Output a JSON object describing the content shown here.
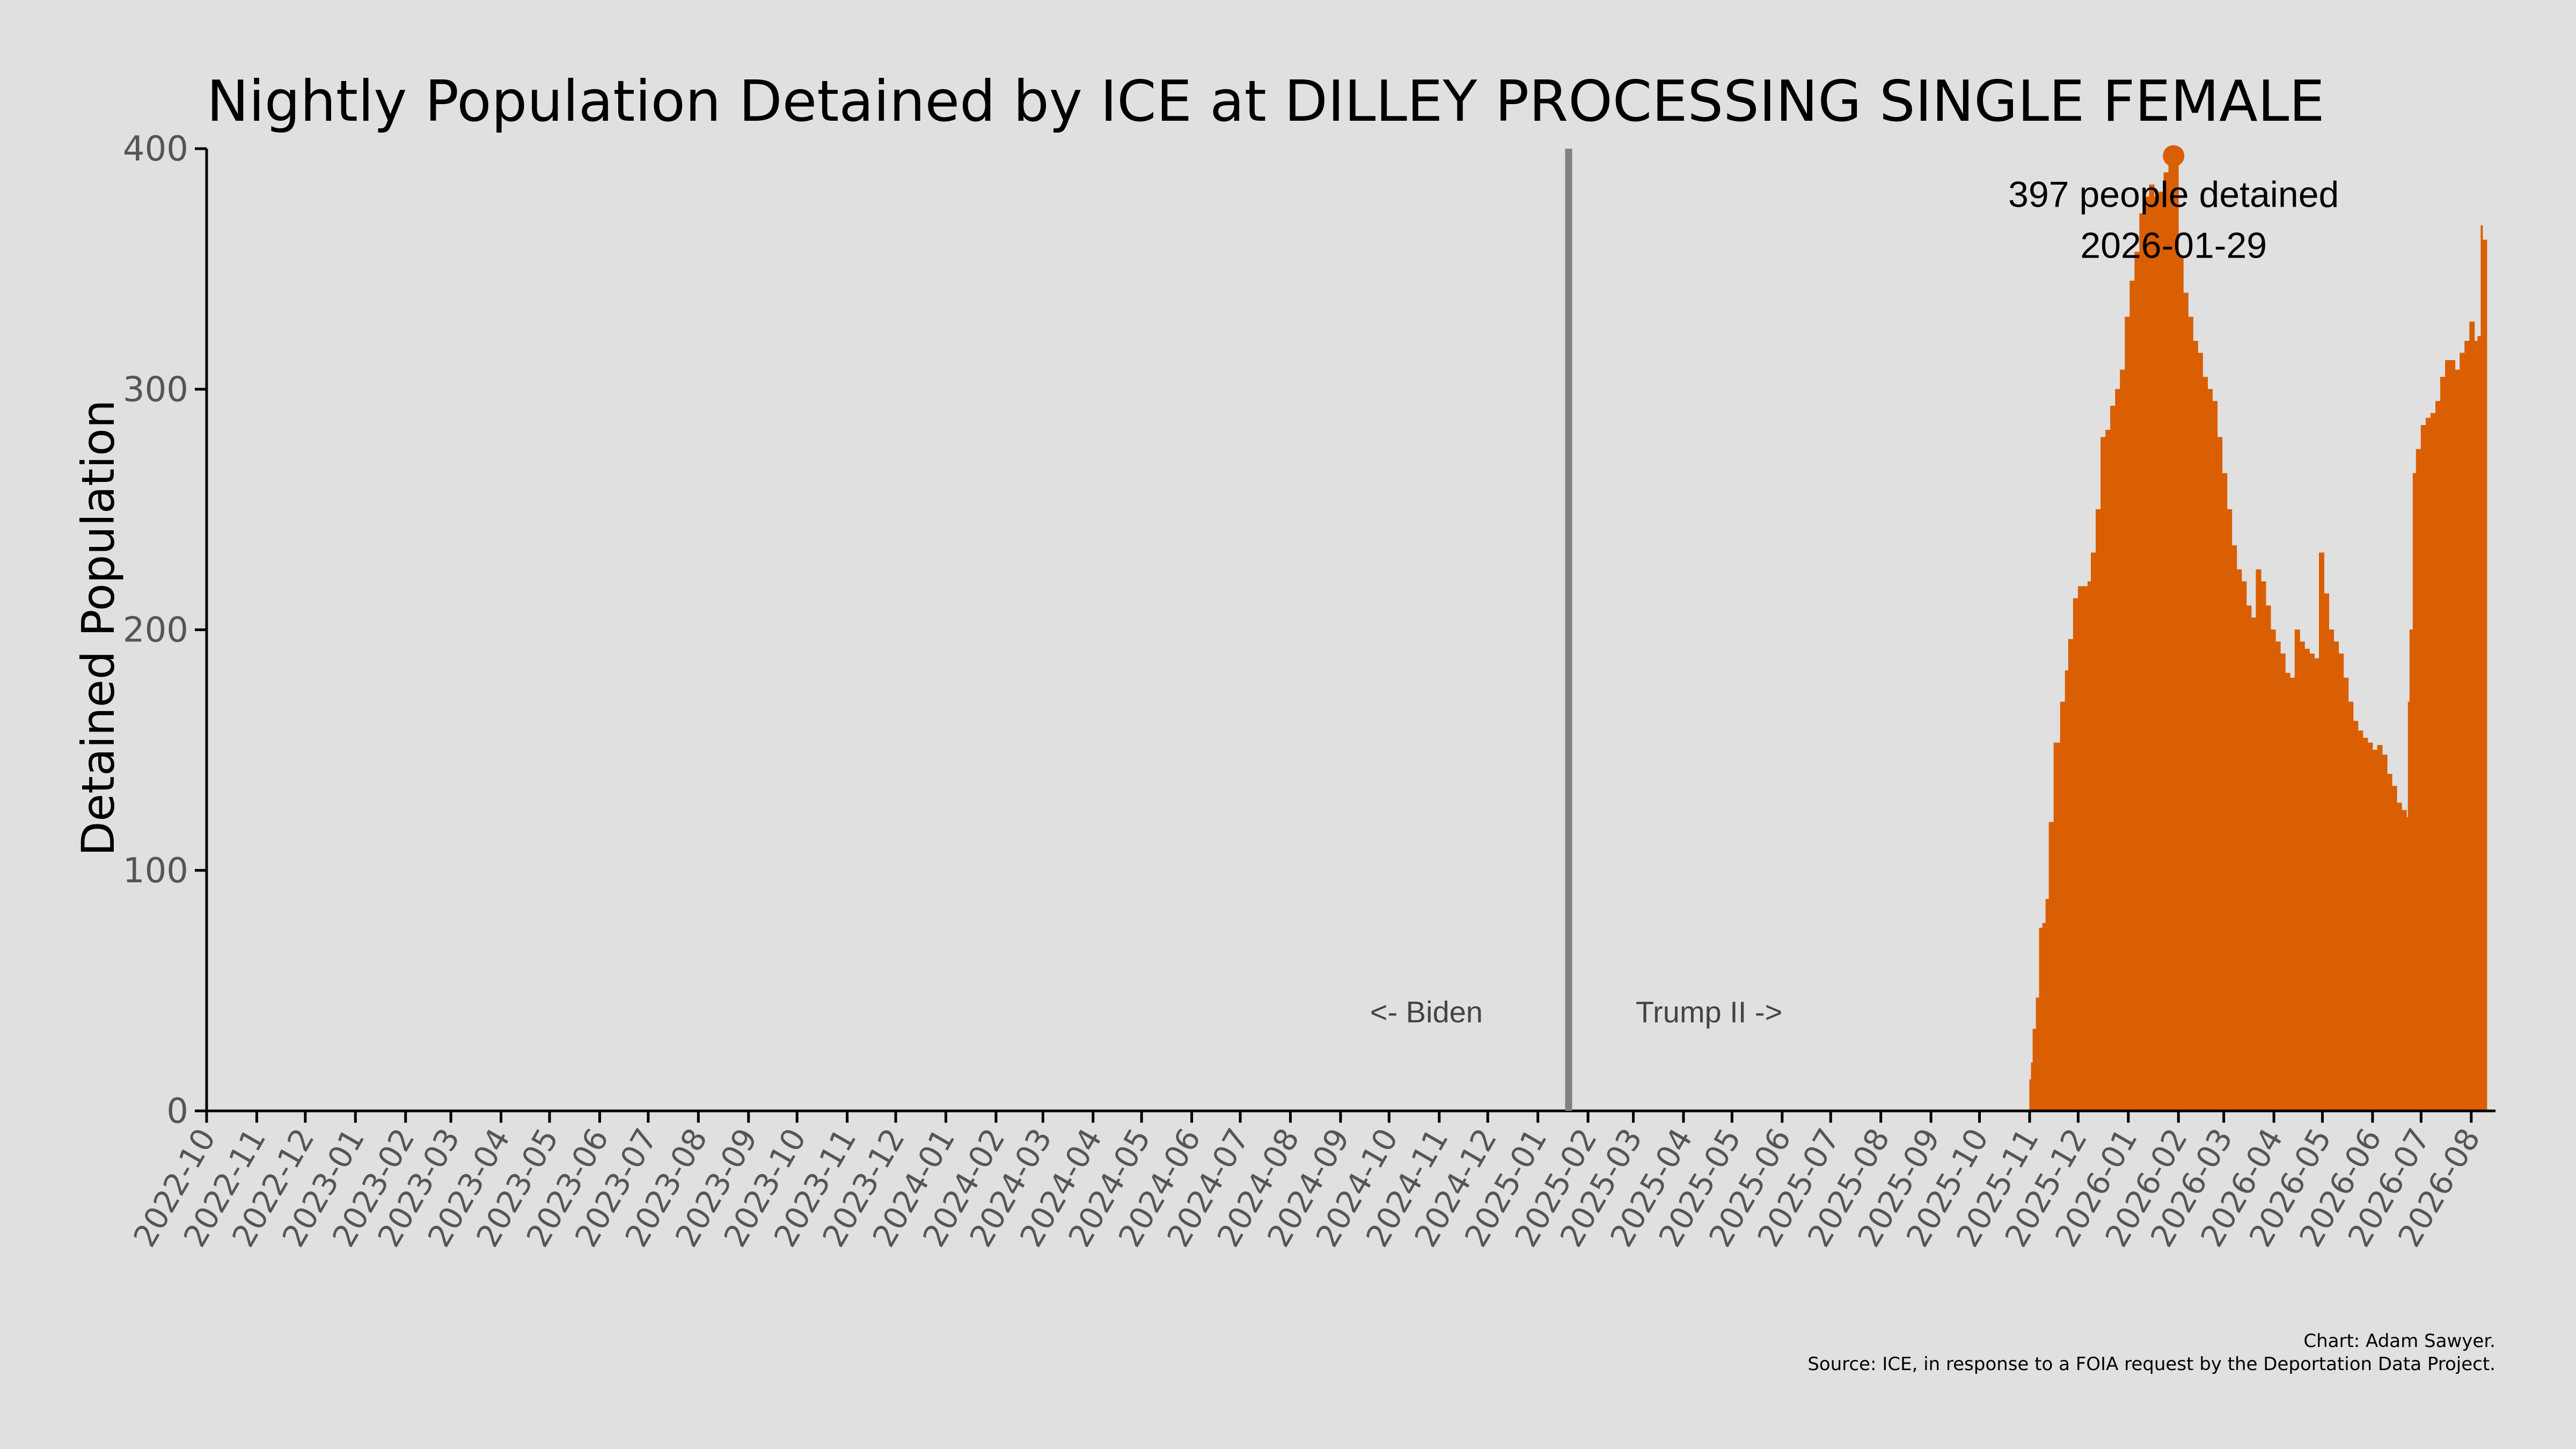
{
  "chart_data": {
    "type": "area",
    "title": "Nightly Population Detained by ICE at DILLEY PROCESSING SINGLE FEMALE",
    "xlabel": "",
    "ylabel": "Detained Population",
    "ylim": [
      0,
      400
    ],
    "yticks": [
      "0",
      "100",
      "200",
      "300",
      "400"
    ],
    "xlim": [
      "2022-10-01",
      "2026-08-16"
    ],
    "xticks": [
      "2022-10",
      "2022-11",
      "2022-12",
      "2023-01",
      "2023-02",
      "2023-03",
      "2023-04",
      "2023-05",
      "2023-06",
      "2023-07",
      "2023-08",
      "2023-09",
      "2023-10",
      "2023-11",
      "2023-12",
      "2024-01",
      "2024-02",
      "2024-03",
      "2024-04",
      "2024-05",
      "2024-06",
      "2024-07",
      "2024-08",
      "2024-09",
      "2024-10",
      "2024-11",
      "2024-12",
      "2025-01",
      "2025-02",
      "2025-03",
      "2025-04",
      "2025-05",
      "2025-06",
      "2025-07",
      "2025-08",
      "2025-09",
      "2025-10",
      "2025-11",
      "2025-12",
      "2026-01",
      "2026-02",
      "2026-03",
      "2026-04",
      "2026-05",
      "2026-06",
      "2026-07",
      "2026-08"
    ],
    "color": "#d95f02",
    "grid": false,
    "series": [
      {
        "x": [
          "2025-11-01",
          "2025-11-02",
          "2025-11-03",
          "2025-11-04",
          "2025-11-05",
          "2025-11-07",
          "2025-11-09",
          "2025-11-11",
          "2025-11-13",
          "2025-11-16",
          "2025-11-18",
          "2025-11-20",
          "2025-11-23",
          "2025-11-25",
          "2025-11-28",
          "2025-12-01",
          "2025-12-04",
          "2025-12-07",
          "2025-12-09",
          "2025-12-12",
          "2025-12-15",
          "2025-12-18",
          "2025-12-21",
          "2025-12-24",
          "2025-12-27",
          "2025-12-30",
          "2026-01-02",
          "2026-01-05",
          "2026-01-08",
          "2026-01-11",
          "2026-01-14",
          "2026-01-17",
          "2026-01-20",
          "2026-01-23",
          "2026-01-26",
          "2026-01-29",
          "2026-02-01",
          "2026-02-04",
          "2026-02-07",
          "2026-02-10",
          "2026-02-13",
          "2026-02-16",
          "2026-02-19",
          "2026-02-22",
          "2026-02-25",
          "2026-02-28",
          "2026-03-03",
          "2026-03-06",
          "2026-03-09",
          "2026-03-12",
          "2026-03-15",
          "2026-03-18",
          "2026-03-21",
          "2026-03-24",
          "2026-03-27",
          "2026-03-30",
          "2026-04-02",
          "2026-04-05",
          "2026-04-08",
          "2026-04-11",
          "2026-04-14",
          "2026-04-17",
          "2026-04-20",
          "2026-04-23",
          "2026-04-26",
          "2026-04-29",
          "2026-05-02",
          "2026-05-05",
          "2026-05-08",
          "2026-05-11",
          "2026-05-14",
          "2026-05-17",
          "2026-05-20",
          "2026-05-23",
          "2026-05-26",
          "2026-05-29",
          "2026-06-01",
          "2026-06-04",
          "2026-06-07",
          "2026-06-10",
          "2026-06-13",
          "2026-06-16",
          "2026-06-19",
          "2026-06-22",
          "2026-06-23",
          "2026-06-24",
          "2026-06-26",
          "2026-06-28",
          "2026-07-01",
          "2026-07-04",
          "2026-07-07",
          "2026-07-10",
          "2026-07-13",
          "2026-07-16",
          "2026-07-19",
          "2026-07-22",
          "2026-07-25",
          "2026-07-28",
          "2026-07-31",
          "2026-08-03",
          "2026-08-05",
          "2026-08-07",
          "2026-08-08"
        ],
        "values": [
          13,
          20,
          34,
          34,
          47,
          76,
          78,
          88,
          120,
          153,
          153,
          170,
          183,
          196,
          213,
          218,
          218,
          220,
          232,
          250,
          280,
          283,
          293,
          300,
          308,
          330,
          345,
          357,
          373,
          380,
          385,
          380,
          382,
          390,
          393,
          397,
          355,
          340,
          330,
          320,
          315,
          305,
          300,
          295,
          280,
          265,
          250,
          235,
          225,
          220,
          210,
          205,
          225,
          220,
          210,
          200,
          195,
          190,
          182,
          180,
          200,
          195,
          192,
          190,
          188,
          232,
          215,
          200,
          195,
          190,
          180,
          170,
          162,
          158,
          155,
          153,
          150,
          152,
          148,
          140,
          135,
          128,
          125,
          122,
          170,
          200,
          265,
          275,
          285,
          288,
          290,
          295,
          305,
          312,
          312,
          308,
          315,
          320,
          328,
          320,
          322,
          368,
          362
        ]
      }
    ],
    "peak": {
      "x": "2026-01-29",
      "y": 397
    },
    "annotations": [
      "397 people detained",
      "2026-01-29"
    ],
    "divider": {
      "x": "2025-01-20"
    },
    "era_labels": [
      "<- Biden",
      "Trump II ->"
    ],
    "credits": [
      "Chart: Adam Sawyer.",
      "Source: ICE, in response to a FOIA request by the Deportation Data Project."
    ]
  }
}
